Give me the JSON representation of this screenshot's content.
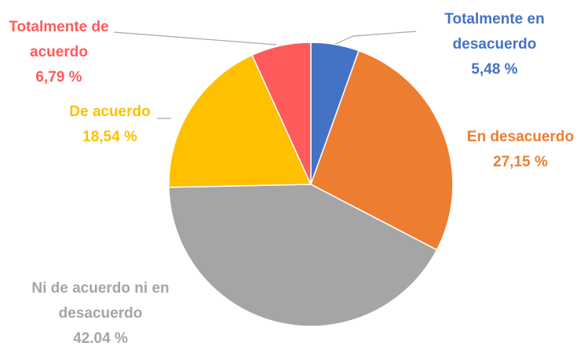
{
  "chart_data": {
    "type": "pie",
    "categories": [
      "Totalmente en desacuerdo",
      "En desacuerdo",
      "Ni de acuerdo ni en desacuerdo",
      "De acuerdo",
      "Totalmente de acuerdo"
    ],
    "values": [
      5.48,
      27.15,
      42.04,
      18.54,
      6.79
    ],
    "value_labels": [
      "5,48 %",
      "27,15 %",
      "42.04 %",
      "18,54 %",
      "6,79 %"
    ],
    "colors": [
      "#4472c4",
      "#ed7d31",
      "#a5a5a5",
      "#ffc000",
      "#ff5b5b"
    ]
  }
}
